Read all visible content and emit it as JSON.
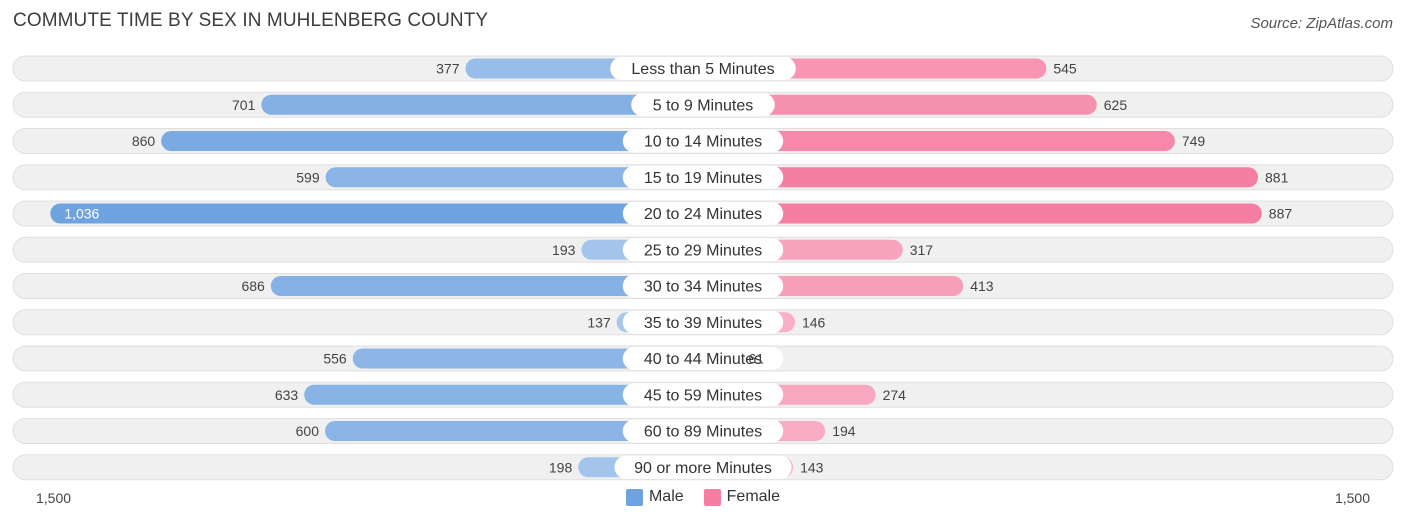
{
  "title": "COMMUTE TIME BY SEX IN MUHLENBERG COUNTY",
  "source": "Source: ZipAtlas.com",
  "colors": {
    "male": "#6fa3df",
    "female": "#f57fa3",
    "row_bg": "#efefef"
  },
  "chart_data": {
    "type": "bar",
    "orientation": "horizontal-diverging",
    "categories": [
      "Less than 5 Minutes",
      "5 to 9 Minutes",
      "10 to 14 Minutes",
      "15 to 19 Minutes",
      "20 to 24 Minutes",
      "25 to 29 Minutes",
      "30 to 34 Minutes",
      "35 to 39 Minutes",
      "40 to 44 Minutes",
      "45 to 59 Minutes",
      "60 to 89 Minutes",
      "90 or more Minutes"
    ],
    "series": [
      {
        "name": "Male",
        "values": [
          377,
          701,
          860,
          599,
          1036,
          193,
          686,
          137,
          556,
          633,
          600,
          198
        ],
        "labels": [
          "377",
          "701",
          "860",
          "599",
          "1,036",
          "193",
          "686",
          "137",
          "556",
          "633",
          "600",
          "198"
        ]
      },
      {
        "name": "Female",
        "values": [
          545,
          625,
          749,
          881,
          887,
          317,
          413,
          146,
          61,
          274,
          194,
          143
        ],
        "labels": [
          "545",
          "625",
          "749",
          "881",
          "887",
          "317",
          "413",
          "146",
          "61",
          "274",
          "194",
          "143"
        ]
      }
    ],
    "xlim": [
      -1500,
      1500
    ],
    "axis_labels": {
      "left": "1,500",
      "right": "1,500"
    },
    "legend": {
      "placement": "bottom-center"
    }
  }
}
